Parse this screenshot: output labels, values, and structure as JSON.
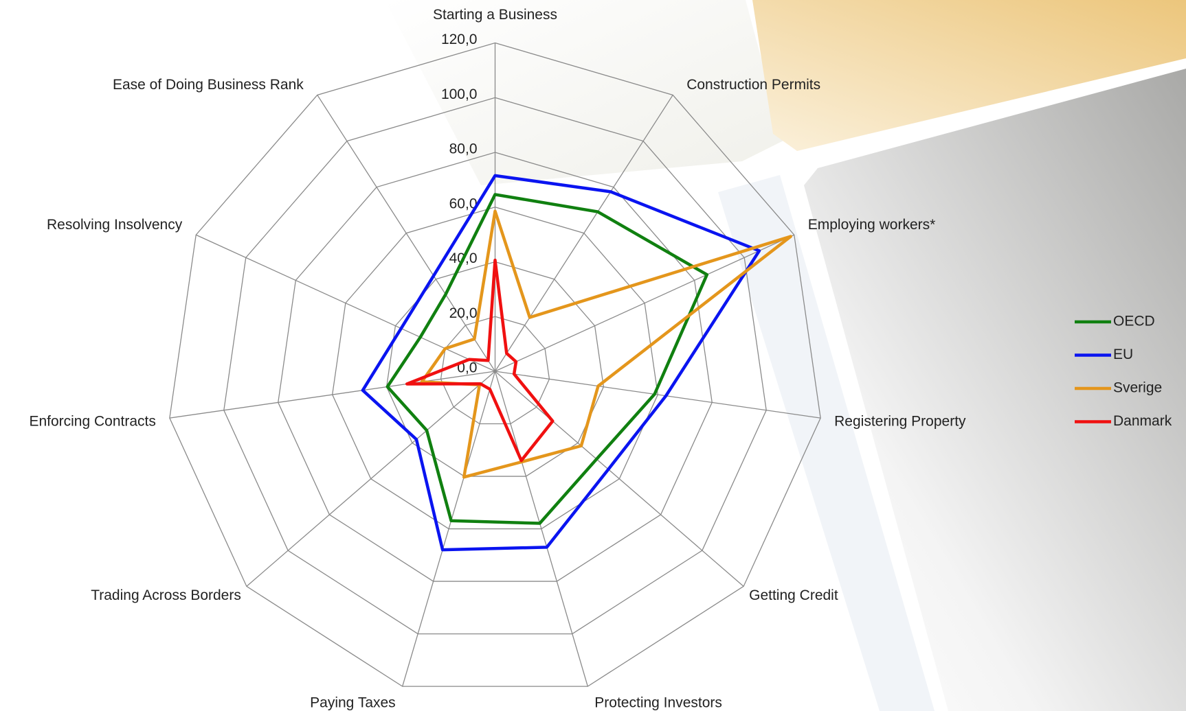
{
  "chart_data": {
    "type": "radar",
    "categories": [
      "Starting a Business",
      "Construction Permits",
      "Employing workers*",
      "Registering Property",
      "Getting Credit",
      "Protecting Investors",
      "Paying Taxes",
      "Trading Across Borders",
      "Enforcing Contracts",
      "Resolving Insolvency",
      "Ease of Doing Business Rank"
    ],
    "series": [
      {
        "name": "OECD",
        "color": "#108010",
        "values": [
          64.6,
          69.3,
          85,
          58.8,
          49,
          57.9,
          56.9,
          33,
          39.7,
          30,
          33.4
        ]
      },
      {
        "name": "EU",
        "color": "#0a14f0",
        "values": [
          71.5,
          78,
          106,
          63,
          54.7,
          67,
          68,
          38,
          48.8,
          37.7,
          41.5
        ]
      },
      {
        "name": "Sverige",
        "color": "#e4961c",
        "values": [
          58.5,
          23.4,
          118.6,
          38,
          41.6,
          34.5,
          40.3,
          7.5,
          27,
          20,
          14
        ]
      },
      {
        "name": "Danmark",
        "color": "#f01010",
        "values": [
          40.6,
          7.8,
          8.4,
          7,
          27.8,
          34,
          6.8,
          7,
          32.5,
          10.4,
          4.7
        ]
      }
    ],
    "ylim": [
      0,
      120
    ],
    "yticks": [
      {
        "value": 0,
        "label": "0,0"
      },
      {
        "value": 20,
        "label": "20,0"
      },
      {
        "value": 40,
        "label": "40,0"
      },
      {
        "value": 60,
        "label": "60,0"
      },
      {
        "value": 80,
        "label": "80,0"
      },
      {
        "value": 100,
        "label": "100,0"
      },
      {
        "value": 120,
        "label": "120,0"
      }
    ],
    "grid": true,
    "legend": "right"
  }
}
